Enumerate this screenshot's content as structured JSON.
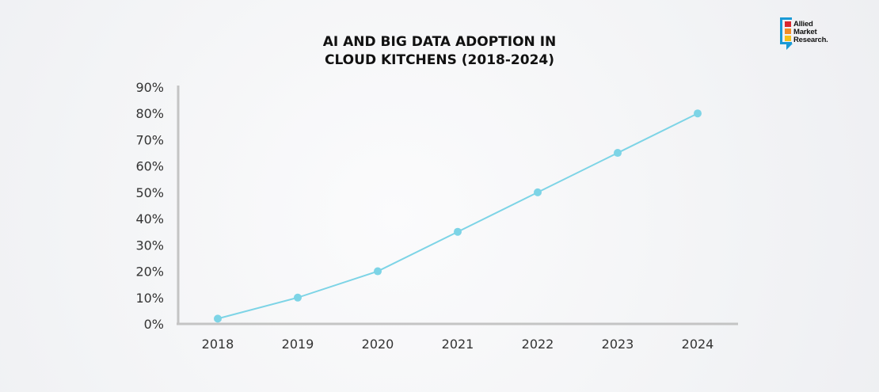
{
  "chart_data": {
    "type": "line",
    "title": "AI AND BIG DATA ADOPTION IN CLOUD KITCHENS (2018-2024)",
    "title_lines": [
      "AI AND BIG DATA ADOPTION IN",
      "CLOUD KITCHENS (2018-2024)"
    ],
    "categories": [
      "2018",
      "2019",
      "2020",
      "2021",
      "2022",
      "2023",
      "2024"
    ],
    "series": [
      {
        "name": "AI and Big Data Adoption",
        "values": [
          2,
          10,
          20,
          35,
          50,
          65,
          80
        ],
        "color": "#7dd4e6"
      }
    ],
    "y_ticks": [
      "0%",
      "10%",
      "20%",
      "30%",
      "40%",
      "50%",
      "60%",
      "70%",
      "80%",
      "90%"
    ],
    "ylim": [
      0,
      90
    ],
    "xlabel": "",
    "ylabel": "",
    "grid": false,
    "axis_color": "#c4c4c4"
  },
  "logo": {
    "line1": "Allied",
    "line2": "Market",
    "line3": "Research."
  }
}
